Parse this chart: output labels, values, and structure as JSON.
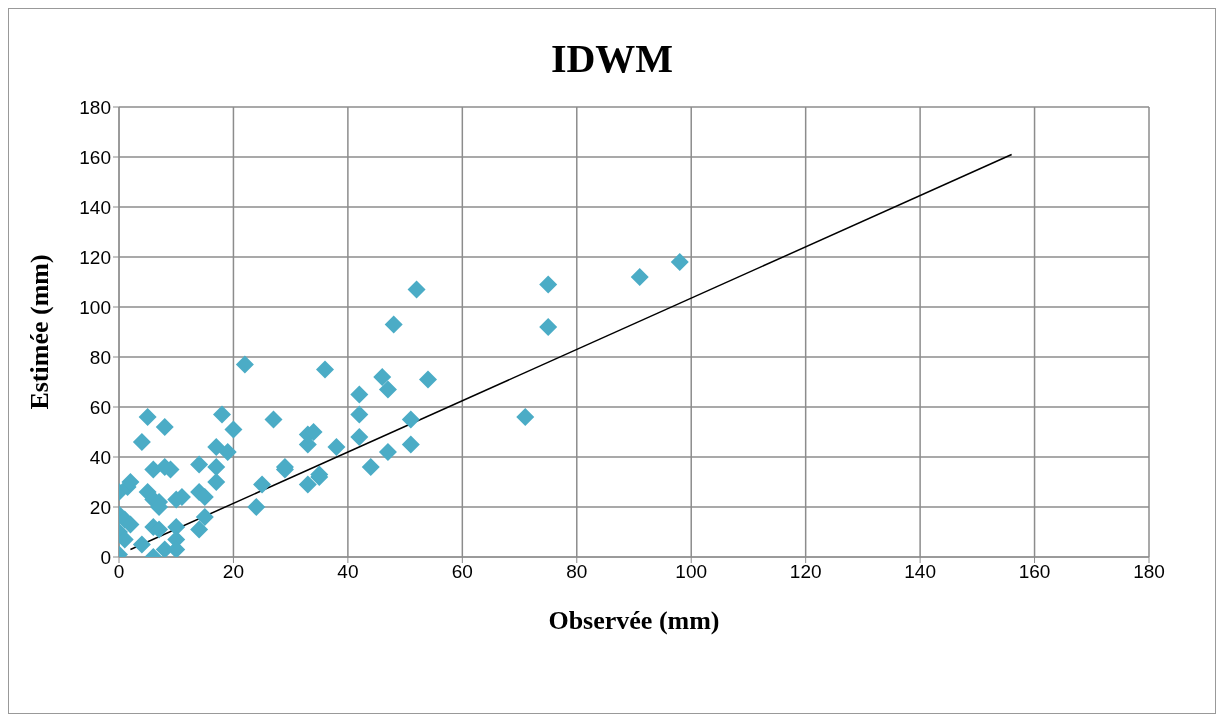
{
  "chart_data": {
    "type": "scatter",
    "title": "IDWM",
    "xlabel": "Observée (mm)",
    "ylabel": "Estimée (mm)",
    "xlim": [
      0,
      180
    ],
    "xticks": [
      0,
      20,
      40,
      60,
      80,
      100,
      120,
      140,
      160,
      180
    ],
    "ylim": [
      0,
      180
    ],
    "yticks": [
      0,
      20,
      40,
      60,
      80,
      100,
      120,
      140,
      160,
      180
    ],
    "grid": true,
    "legend": false,
    "marker": "diamond",
    "series": [
      {
        "color": "#4bacc6",
        "x": [
          0,
          0,
          0,
          0,
          1,
          1,
          1.5,
          2,
          2,
          4,
          4,
          5,
          5,
          6,
          6,
          6,
          6,
          7,
          7,
          7,
          8,
          8,
          8,
          9,
          10,
          10,
          10,
          10,
          11,
          14,
          14,
          14,
          15,
          15,
          17,
          17,
          17,
          18,
          19,
          20,
          22,
          24,
          25,
          27,
          29,
          29,
          33,
          33,
          33,
          34,
          35,
          35,
          36,
          38,
          42,
          42,
          42,
          44,
          46,
          47,
          47,
          48,
          51,
          51,
          52,
          54,
          71,
          75,
          75,
          91,
          98
        ],
        "values": [
          1,
          10,
          17,
          26,
          7,
          15,
          28,
          30,
          13,
          5,
          46,
          56,
          26,
          12,
          0,
          23,
          35,
          22,
          11,
          20,
          3,
          36,
          52,
          35,
          12,
          23,
          7,
          3,
          24,
          26,
          37,
          11,
          16,
          24,
          36,
          44,
          30,
          57,
          42,
          51,
          77,
          20,
          29,
          55,
          35,
          36,
          45,
          49,
          29,
          50,
          32,
          33,
          75,
          44,
          48,
          65,
          57,
          36,
          72,
          42,
          67,
          93,
          55,
          45,
          107,
          71,
          56,
          109,
          92,
          112,
          118
        ]
      },
      {
        "type": "line",
        "color": "#000000",
        "marker": "none",
        "x": [
          2,
          156
        ],
        "values": [
          3,
          161
        ]
      }
    ]
  }
}
